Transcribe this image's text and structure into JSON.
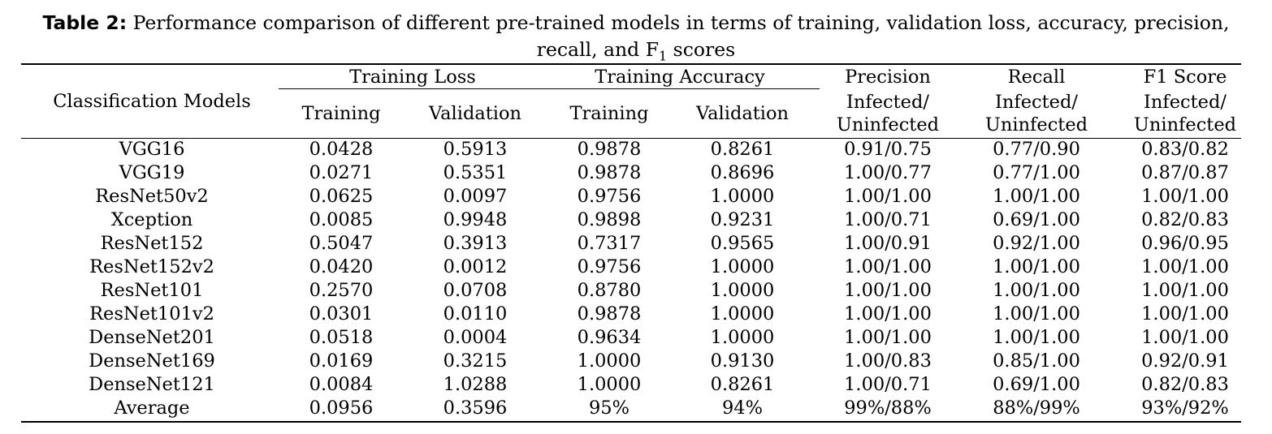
{
  "caption": {
    "label": "Table 2:",
    "text_line1": " Performance comparison of different pre-trained models in terms of training, validation loss, accuracy, precision,",
    "text_line2_pre": "recall, and F",
    "text_line2_sub": "1",
    "text_line2_post": " scores"
  },
  "header": {
    "model_col": "Classification Models",
    "training_loss": "Training Loss",
    "training_accuracy": "Training Accuracy",
    "precision": "Precision",
    "recall": "Recall",
    "f1": "F1 Score",
    "training": "Training",
    "validation": "Validation",
    "infected": "Infected/",
    "uninfected": "Uninfected"
  },
  "rows": [
    {
      "model": "VGG16",
      "train_loss": "0.0428",
      "val_loss": "0.5913",
      "train_acc": "0.9878",
      "val_acc": "0.8261",
      "precision": "0.91/0.75",
      "recall": "0.77/0.90",
      "f1": "0.83/0.82"
    },
    {
      "model": "VGG19",
      "train_loss": "0.0271",
      "val_loss": "0.5351",
      "train_acc": "0.9878",
      "val_acc": "0.8696",
      "precision": "1.00/0.77",
      "recall": "0.77/1.00",
      "f1": "0.87/0.87"
    },
    {
      "model": "ResNet50v2",
      "train_loss": "0.0625",
      "val_loss": "0.0097",
      "train_acc": "0.9756",
      "val_acc": "1.0000",
      "precision": "1.00/1.00",
      "recall": "1.00/1.00",
      "f1": "1.00/1.00"
    },
    {
      "model": "Xception",
      "train_loss": "0.0085",
      "val_loss": "0.9948",
      "train_acc": "0.9898",
      "val_acc": "0.9231",
      "precision": "1.00/0.71",
      "recall": "0.69/1.00",
      "f1": "0.82/0.83"
    },
    {
      "model": "ResNet152",
      "train_loss": "0.5047",
      "val_loss": "0.3913",
      "train_acc": "0.7317",
      "val_acc": "0.9565",
      "precision": "1.00/0.91",
      "recall": "0.92/1.00",
      "f1": "0.96/0.95"
    },
    {
      "model": "ResNet152v2",
      "train_loss": "0.0420",
      "val_loss": "0.0012",
      "train_acc": "0.9756",
      "val_acc": "1.0000",
      "precision": "1.00/1.00",
      "recall": "1.00/1.00",
      "f1": "1.00/1.00"
    },
    {
      "model": "ResNet101",
      "train_loss": "0.2570",
      "val_loss": "0.0708",
      "train_acc": "0.8780",
      "val_acc": "1.0000",
      "precision": "1.00/1.00",
      "recall": "1.00/1.00",
      "f1": "1.00/1.00"
    },
    {
      "model": "ResNet101v2",
      "train_loss": "0.0301",
      "val_loss": "0.0110",
      "train_acc": "0.9878",
      "val_acc": "1.0000",
      "precision": "1.00/1.00",
      "recall": "1.00/1.00",
      "f1": "1.00/1.00"
    },
    {
      "model": "DenseNet201",
      "train_loss": "0.0518",
      "val_loss": "0.0004",
      "train_acc": "0.9634",
      "val_acc": "1.0000",
      "precision": "1.00/1.00",
      "recall": "1.00/1.00",
      "f1": "1.00/1.00"
    },
    {
      "model": "DenseNet169",
      "train_loss": "0.0169",
      "val_loss": "0.3215",
      "train_acc": "1.0000",
      "val_acc": "0.9130",
      "precision": "1.00/0.83",
      "recall": "0.85/1.00",
      "f1": "0.92/0.91"
    },
    {
      "model": "DenseNet121",
      "train_loss": "0.0084",
      "val_loss": "1.0288",
      "train_acc": "1.0000",
      "val_acc": "0.8261",
      "precision": "1.00/0.71",
      "recall": "0.69/1.00",
      "f1": "0.82/0.83"
    },
    {
      "model": "Average",
      "train_loss": "0.0956",
      "val_loss": "0.3596",
      "train_acc": "95%",
      "val_acc": "94%",
      "precision": "99%/88%",
      "recall": "88%/99%",
      "f1": "93%/92%"
    }
  ]
}
